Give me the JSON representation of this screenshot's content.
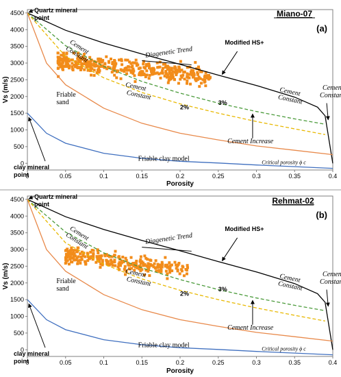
{
  "chart_data": [
    {
      "type": "scatter",
      "title": "Miano-07",
      "panel_label": "(a)",
      "xlabel": "Porosity",
      "ylabel": "Vs (m/s)",
      "xlim": [
        0,
        0.4
      ],
      "ylim": [
        -200,
        4600
      ],
      "x_ticks": [
        "0",
        "0.05",
        "0.1",
        "0.15",
        "0.2",
        "0.25",
        "0.3",
        "0.35",
        "0.4"
      ],
      "y_ticks": [
        "0",
        "500",
        "1000",
        "1500",
        "2000",
        "2500",
        "3000",
        "3500",
        "4000",
        "4500"
      ],
      "scatter_color": "#f28c1a",
      "scatter_cloud": {
        "x_range": [
          0.04,
          0.24
        ],
        "y_range": [
          2300,
          3300
        ],
        "approx_points": 420
      },
      "series": [
        {
          "name": "Modified HS+",
          "style": "solid",
          "color": "#000000",
          "x": [
            0,
            0.05,
            0.1,
            0.15,
            0.2,
            0.25,
            0.3,
            0.35,
            0.38,
            0.39,
            0.4
          ],
          "y": [
            4500,
            3980,
            3600,
            3270,
            2960,
            2640,
            2330,
            1980,
            1680,
            1420,
            0
          ]
        },
        {
          "name": "Cement Constant 3%",
          "style": "dashed",
          "color": "#4a9a3a",
          "x": [
            0,
            0.05,
            0.1,
            0.15,
            0.2,
            0.25,
            0.3,
            0.35,
            0.39
          ],
          "y": [
            4500,
            3520,
            2900,
            2450,
            2100,
            1800,
            1550,
            1330,
            1170
          ]
        },
        {
          "name": "Cement Constant 2%",
          "style": "dashed",
          "color": "#e8b800",
          "x": [
            0,
            0.05,
            0.1,
            0.15,
            0.2,
            0.25,
            0.3,
            0.35,
            0.39
          ],
          "y": [
            4500,
            3200,
            2560,
            2120,
            1780,
            1500,
            1250,
            1030,
            860
          ]
        },
        {
          "name": "Friable sand",
          "style": "solid",
          "color": "#e8894a",
          "x": [
            0,
            0.025,
            0.05,
            0.1,
            0.15,
            0.2,
            0.25,
            0.3,
            0.35,
            0.4
          ],
          "y": [
            4500,
            3000,
            2350,
            1650,
            1200,
            900,
            700,
            520,
            390,
            260
          ]
        },
        {
          "name": "Friable clay model",
          "style": "solid",
          "color": "#3f6fbf",
          "x": [
            0,
            0.025,
            0.05,
            0.1,
            0.15,
            0.2,
            0.25,
            0.3,
            0.35,
            0.4
          ],
          "y": [
            1500,
            900,
            600,
            300,
            150,
            60,
            10,
            -50,
            -100,
            -150
          ]
        }
      ],
      "annotations": {
        "quartz": "Quartz mineral point",
        "clay": "clay mineral point",
        "diagenetic": "Diagenetic Trend",
        "modified": "Modified HS+",
        "cement_const": "Cement Constant",
        "cement_const_edge": "Cement Constant",
        "friable_sand": "Friable sand",
        "pct3": "3%",
        "pct2": "2%",
        "cement_increase": "Cement Increase",
        "friable_clay": "Friable clay model",
        "critical": "Critical porosity ϕ c"
      }
    },
    {
      "type": "scatter",
      "title": "Rehmat-02",
      "panel_label": "(b)",
      "xlabel": "Porosity",
      "ylabel": "Vs (m/s)",
      "xlim": [
        0,
        0.4
      ],
      "ylim": [
        -200,
        4600
      ],
      "x_ticks": [
        "0",
        "0.05",
        "0.1",
        "0.15",
        "0.2",
        "0.25",
        "0.3",
        "0.35",
        "0.4"
      ],
      "y_ticks": [
        "0",
        "500",
        "1000",
        "1500",
        "2000",
        "2500",
        "3000",
        "3500",
        "4000",
        "4500"
      ],
      "scatter_color": "#f28c1a",
      "scatter_cloud": {
        "x_range": [
          0.05,
          0.21
        ],
        "y_range": [
          2100,
          3050
        ],
        "approx_points": 300
      },
      "series": [
        {
          "name": "Modified HS+",
          "style": "solid",
          "color": "#000000",
          "x": [
            0,
            0.05,
            0.1,
            0.15,
            0.2,
            0.25,
            0.3,
            0.35,
            0.38,
            0.39,
            0.4
          ],
          "y": [
            4500,
            3980,
            3600,
            3270,
            2960,
            2640,
            2330,
            1980,
            1680,
            1420,
            0
          ]
        },
        {
          "name": "Cement Constant 3%",
          "style": "dashed",
          "color": "#4a9a3a",
          "x": [
            0,
            0.05,
            0.1,
            0.15,
            0.2,
            0.25,
            0.3,
            0.35,
            0.39
          ],
          "y": [
            4500,
            3520,
            2900,
            2450,
            2100,
            1800,
            1550,
            1330,
            1170
          ]
        },
        {
          "name": "Cement Constant 2%",
          "style": "dashed",
          "color": "#e8b800",
          "x": [
            0,
            0.05,
            0.1,
            0.15,
            0.2,
            0.25,
            0.3,
            0.35,
            0.39
          ],
          "y": [
            4500,
            3200,
            2560,
            2120,
            1780,
            1500,
            1250,
            1030,
            860
          ]
        },
        {
          "name": "Friable sand",
          "style": "solid",
          "color": "#e8894a",
          "x": [
            0,
            0.025,
            0.05,
            0.1,
            0.15,
            0.2,
            0.25,
            0.3,
            0.35,
            0.4
          ],
          "y": [
            4500,
            3000,
            2350,
            1650,
            1200,
            900,
            700,
            520,
            390,
            260
          ]
        },
        {
          "name": "Friable clay model",
          "style": "solid",
          "color": "#3f6fbf",
          "x": [
            0,
            0.025,
            0.05,
            0.1,
            0.15,
            0.2,
            0.25,
            0.3,
            0.35,
            0.4
          ],
          "y": [
            1500,
            900,
            600,
            300,
            150,
            60,
            10,
            -50,
            -100,
            -150
          ]
        }
      ],
      "annotations": {
        "quartz": "Quartz mineral point",
        "clay": "clay mineral point",
        "diagenetic": "Diagenetic Trend",
        "modified": "Modified HS+",
        "cement_const": "Cement Constant",
        "cement_const_edge": "Cement Constant",
        "friable_sand": "Friable sand",
        "pct3": "3%",
        "pct2": "2%",
        "cement_increase": "Cement Increase",
        "friable_clay": "Friable clay model",
        "critical": "Critical porosity ϕ c"
      }
    }
  ]
}
